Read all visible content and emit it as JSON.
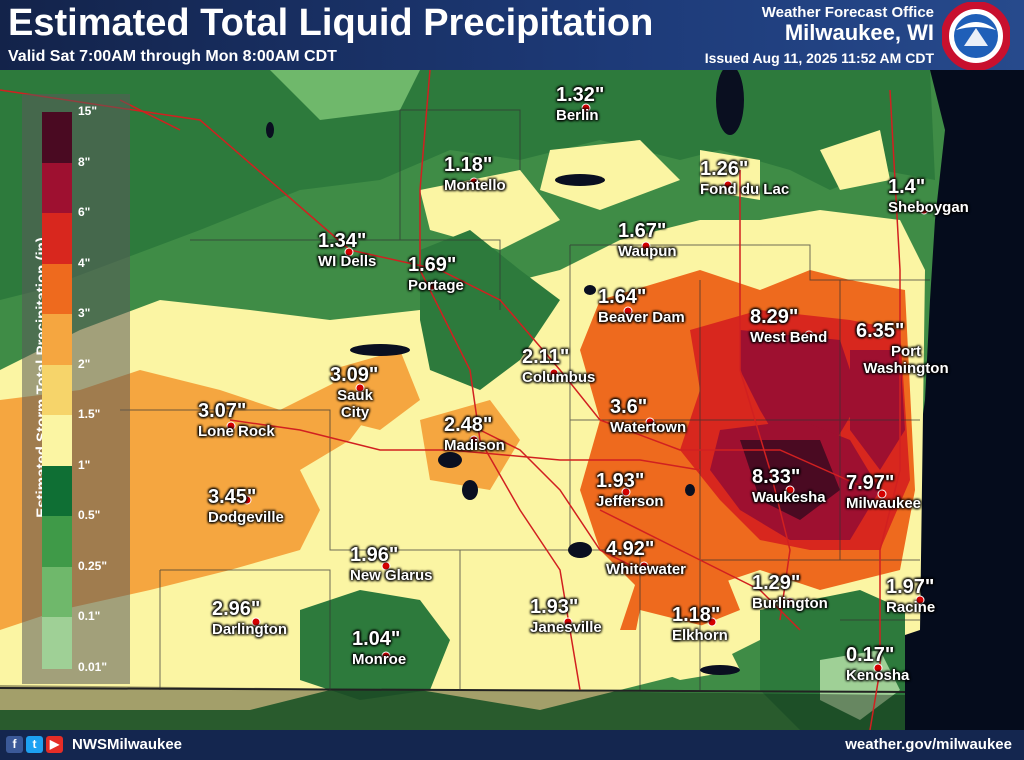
{
  "header": {
    "title": "Estimated Total Liquid Precipitation",
    "subtitle": "Valid Sat 7:00AM through Mon 8:00AM CDT",
    "office_line1": "Weather Forecast Office",
    "office_line2": "Milwaukee, WI",
    "issued": "Issued Aug 11, 2025 11:52 AM CDT",
    "logo_text": "NATIONAL WEATHER SERVICE"
  },
  "legend": {
    "title": "Estimated Storm Total Precipitation (in)",
    "ticks": [
      "15\"",
      "8\"",
      "6\"",
      "4\"",
      "3\"",
      "2\"",
      "1.5\"",
      "1\"",
      "0.5\"",
      "0.25\"",
      "0.1\"",
      "0.01\""
    ],
    "colors": [
      "#4a0a22",
      "#9e1030",
      "#d8271e",
      "#ee6a1e",
      "#f5a640",
      "#f6d46a",
      "#fbf5a3",
      "#0f6f34",
      "#3f9a48",
      "#6fb86b",
      "#9fd096",
      "#cde8c6"
    ]
  },
  "cities": [
    {
      "name": "Berlin",
      "value": "1.32\""
    },
    {
      "name": "Montello",
      "value": "1.18\""
    },
    {
      "name": "Fond du Lac",
      "value": "1.26\""
    },
    {
      "name": "Sheboygan",
      "value": "1.4\""
    },
    {
      "name": "WI Dells",
      "value": "1.34\""
    },
    {
      "name": "Portage",
      "value": "1.69\""
    },
    {
      "name": "Waupun",
      "value": "1.67\""
    },
    {
      "name": "Beaver Dam",
      "value": "1.64\""
    },
    {
      "name": "West Bend",
      "value": "8.29\""
    },
    {
      "name": "Port Washington",
      "value": "6.35\""
    },
    {
      "name": "Columbus",
      "value": "2.11\""
    },
    {
      "name": "Sauk City",
      "value": "3.09\""
    },
    {
      "name": "Lone Rock",
      "value": "3.07\""
    },
    {
      "name": "Madison",
      "value": "2.48\""
    },
    {
      "name": "Watertown",
      "value": "3.6\""
    },
    {
      "name": "Dodgeville",
      "value": "3.45\""
    },
    {
      "name": "Jefferson",
      "value": "1.93\""
    },
    {
      "name": "Waukesha",
      "value": "8.33\""
    },
    {
      "name": "Milwaukee",
      "value": "7.97\""
    },
    {
      "name": "New Glarus",
      "value": "1.96\""
    },
    {
      "name": "Whitewater",
      "value": "4.92\""
    },
    {
      "name": "Darlington",
      "value": "2.96\""
    },
    {
      "name": "Janesville",
      "value": "1.93\""
    },
    {
      "name": "Burlington",
      "value": "1.29\""
    },
    {
      "name": "Racine",
      "value": "1.97\""
    },
    {
      "name": "Elkhorn",
      "value": "1.18\""
    },
    {
      "name": "Monroe",
      "value": "1.04\""
    },
    {
      "name": "Kenosha",
      "value": "0.17\""
    }
  ],
  "footer": {
    "social_icons": [
      "facebook-icon",
      "twitter-icon",
      "youtube-icon"
    ],
    "handle": "NWSMilwaukee",
    "website": "weather.gov/milwaukee"
  }
}
